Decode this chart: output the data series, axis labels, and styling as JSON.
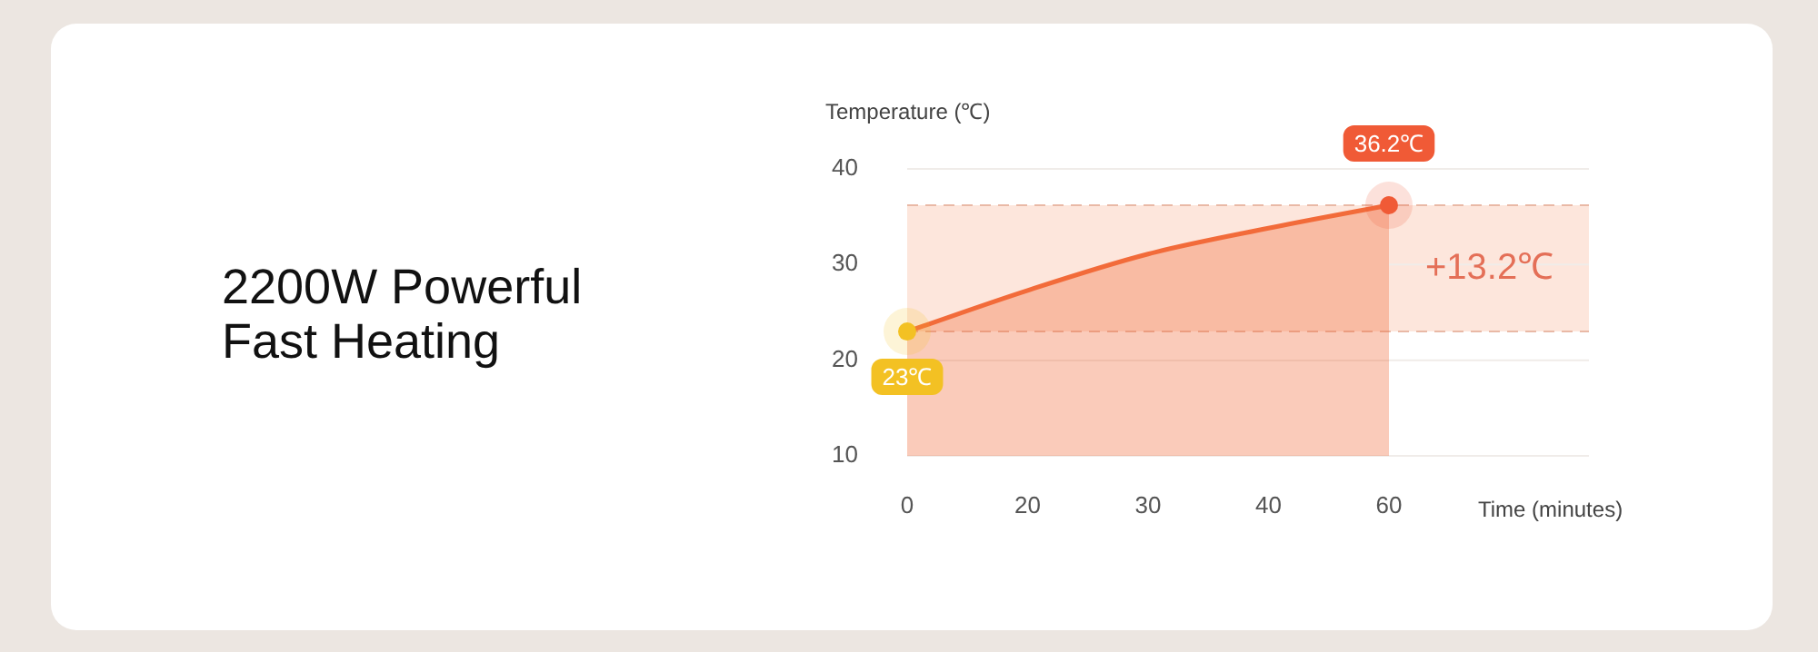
{
  "chart_data": {
    "type": "area",
    "title": "2200W Powerful Fast Heating",
    "xlabel": "Time (minutes)",
    "ylabel": "Temperature (℃)",
    "categories": [
      "0",
      "20",
      "30",
      "40",
      "60"
    ],
    "series": [
      {
        "color": "#f26b3a",
        "values": [
          23,
          27.3,
          31.1,
          33.8,
          36.2
        ]
      }
    ],
    "ylim": [
      10,
      40
    ],
    "yticks": [
      10,
      20,
      30,
      40
    ],
    "grid": "y",
    "legend": false,
    "marker": "none",
    "ref_lines": [
      {
        "axis": "y",
        "value": 23,
        "color": "#e9b9a6",
        "line_style": "dashed"
      },
      {
        "axis": "y",
        "value": 36.2,
        "color": "#e9b9a6",
        "line_style": "dashed"
      }
    ],
    "bands": [
      {
        "axis": "y",
        "from": 23,
        "to": 36.2,
        "label": "+13.2℃",
        "color": "#fde6dc"
      }
    ],
    "annotations": [
      {
        "text": "23℃",
        "x": "0",
        "y": 23
      },
      {
        "text": "36.2℃",
        "x": "60",
        "y": 36.2
      }
    ]
  }
}
